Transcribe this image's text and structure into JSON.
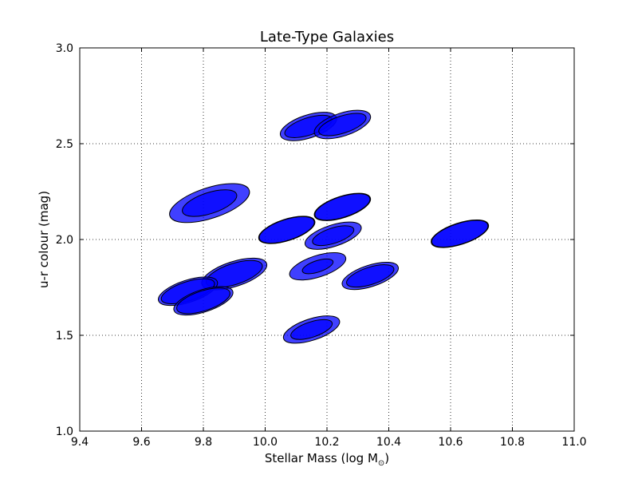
{
  "chart_data": {
    "type": "scatter",
    "title": "Late-Type Galaxies",
    "xlabel_main": "Stellar Mass (log M",
    "xlabel_sub": "⊙",
    "xlabel_close": ")",
    "ylabel": "u-r colour (mag)",
    "xlim": [
      9.4,
      11.0
    ],
    "ylim": [
      1.0,
      3.0
    ],
    "x_ticks": [
      "9.4",
      "9.6",
      "9.8",
      "10.0",
      "10.2",
      "10.4",
      "10.6",
      "10.8",
      "11.0"
    ],
    "y_ticks": [
      "1.0",
      "1.5",
      "2.0",
      "2.5",
      "3.0"
    ],
    "grid": true,
    "fill_color": "#0000ff",
    "edge_color": "#000000",
    "points": [
      {
        "x": 10.14,
        "y": 2.59,
        "outer": [
          0.095,
          0.06
        ],
        "inner": [
          0.08,
          0.045
        ],
        "angle": 18
      },
      {
        "x": 10.25,
        "y": 2.6,
        "outer": [
          0.095,
          0.06
        ],
        "inner": [
          0.08,
          0.045
        ],
        "angle": 18
      },
      {
        "x": 9.82,
        "y": 2.19,
        "outer": [
          0.135,
          0.08
        ],
        "inner": [
          0.092,
          0.055
        ],
        "angle": 18
      },
      {
        "x": 10.07,
        "y": 2.05,
        "outer": [
          0.095,
          0.056
        ],
        "inner": [
          0.093,
          0.054
        ],
        "angle": 18
      },
      {
        "x": 10.25,
        "y": 2.17,
        "outer": [
          0.095,
          0.056
        ],
        "inner": [
          0.093,
          0.054
        ],
        "angle": 18
      },
      {
        "x": 10.63,
        "y": 2.03,
        "outer": [
          0.097,
          0.056
        ],
        "inner": [
          0.095,
          0.054
        ],
        "angle": 18
      },
      {
        "x": 10.22,
        "y": 2.02,
        "outer": [
          0.095,
          0.056
        ],
        "inner": [
          0.07,
          0.04
        ],
        "angle": 18
      },
      {
        "x": 10.17,
        "y": 1.86,
        "outer": [
          0.095,
          0.056
        ],
        "inner": [
          0.052,
          0.03
        ],
        "angle": 18
      },
      {
        "x": 10.34,
        "y": 1.81,
        "outer": [
          0.095,
          0.056
        ],
        "inner": [
          0.08,
          0.045
        ],
        "angle": 18
      },
      {
        "x": 9.9,
        "y": 1.82,
        "outer": [
          0.11,
          0.065
        ],
        "inner": [
          0.095,
          0.055
        ],
        "angle": 18
      },
      {
        "x": 9.75,
        "y": 1.73,
        "outer": [
          0.1,
          0.058
        ],
        "inner": [
          0.09,
          0.05
        ],
        "angle": 18
      },
      {
        "x": 9.8,
        "y": 1.68,
        "outer": [
          0.1,
          0.058
        ],
        "inner": [
          0.09,
          0.052
        ],
        "angle": 18
      },
      {
        "x": 10.15,
        "y": 1.53,
        "outer": [
          0.095,
          0.056
        ],
        "inner": [
          0.07,
          0.04
        ],
        "angle": 18
      }
    ]
  }
}
